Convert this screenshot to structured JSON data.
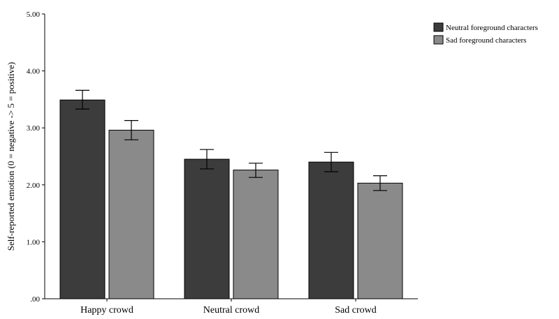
{
  "chart_data": {
    "type": "bar",
    "title": "",
    "xlabel": "",
    "ylabel": "Self-reported emotion (0 = negative -> 5 = positive)",
    "ylim": [
      0,
      5
    ],
    "y_ticks": [
      0,
      1,
      2,
      3,
      4,
      5
    ],
    "y_tick_labels": [
      ".00",
      "1.00",
      "2.00",
      "3.00",
      "4.00",
      "5.00"
    ],
    "categories": [
      "Happy crowd",
      "Neutral crowd",
      "Sad crowd"
    ],
    "series": [
      {
        "name": "Neutral foreground characters",
        "color": "#3c3c3c",
        "values": [
          3.49,
          2.45,
          2.4
        ],
        "error_low": [
          3.33,
          2.28,
          2.23
        ],
        "error_high": [
          3.66,
          2.62,
          2.57
        ]
      },
      {
        "name": "Sad foreground characters",
        "color": "#8a8a8a",
        "values": [
          2.96,
          2.26,
          2.03
        ],
        "error_low": [
          2.79,
          2.13,
          1.9
        ],
        "error_high": [
          3.13,
          2.38,
          2.16
        ]
      }
    ],
    "legend_position": "top-right",
    "grid": false
  }
}
